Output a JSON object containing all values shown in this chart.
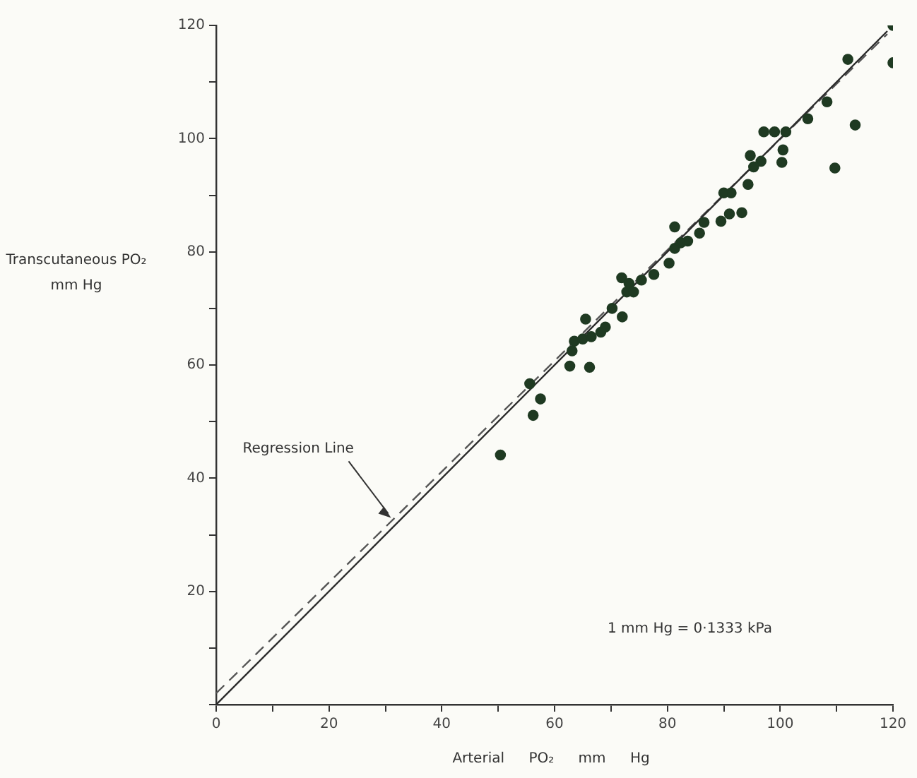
{
  "chart_data": {
    "type": "scatter",
    "xlabel": "Arterial PO₂ mm Hg",
    "ylabel": "Transcutaneous PO₂ mm Hg",
    "xlim": [
      0,
      120
    ],
    "ylim": [
      0,
      120
    ],
    "xticks": [
      0,
      {
        "value": 10,
        "label": null
      },
      20,
      {
        "value": 30,
        "label": null
      },
      40,
      {
        "value": 50,
        "label": null
      },
      60,
      {
        "value": 70,
        "label": null
      },
      80,
      {
        "value": 90,
        "label": null
      },
      100,
      {
        "value": 110,
        "label": null
      },
      120
    ],
    "yticks": [
      {
        "value": 0,
        "label": null
      },
      {
        "value": 10,
        "label": null
      },
      20,
      {
        "value": 30,
        "label": null
      },
      40,
      {
        "value": 50,
        "label": null
      },
      60,
      {
        "value": 70,
        "label": null
      },
      80,
      {
        "value": 90,
        "label": null
      },
      100,
      {
        "value": 110,
        "label": null
      },
      120
    ],
    "grid": false,
    "legend": false,
    "tick_labels": "xy",
    "series": [
      {
        "type": "scatter",
        "color": "#1f3a22",
        "marker": "circle",
        "x": [
          120,
          120,
          112,
          113.3,
          109.7,
          108.3,
          104.9,
          97.1,
          99,
          101,
          100.5,
          100.3,
          94.7,
          96.6,
          95.3,
          94.3,
          90,
          91.3,
          93.2,
          91,
          89.5,
          86.5,
          85.7,
          81.3,
          82.4,
          83.6,
          81.3,
          80.3,
          77.6,
          75.4,
          71.9,
          73.2,
          72.8,
          74,
          70.2,
          72,
          65.5,
          69,
          68.2,
          66.5,
          63.5,
          65,
          63.1,
          62.7,
          66.2,
          55.6,
          57.5,
          56.2,
          50.4
        ],
        "values": [
          120,
          113.4,
          114,
          102.4,
          94.8,
          106.5,
          103.5,
          101.2,
          101.2,
          101.2,
          98,
          95.8,
          97,
          96,
          95,
          91.9,
          90.4,
          90.4,
          86.9,
          86.7,
          85.4,
          85.2,
          83.3,
          84.4,
          81.6,
          81.9,
          80.6,
          78,
          76,
          75,
          75.4,
          74.4,
          72.9,
          72.9,
          70,
          68.5,
          68.1,
          66.7,
          65.8,
          65,
          64.2,
          64.6,
          62.5,
          59.8,
          59.6,
          56.7,
          54,
          51.1,
          44.1
        ]
      },
      {
        "type": "line",
        "color": "#2a2a2a",
        "marker": "none",
        "line_style": "solid",
        "x": [
          0,
          119
        ],
        "values": [
          0,
          119
        ]
      },
      {
        "type": "line",
        "color": "#555555",
        "marker": "none",
        "line_style": "dashed",
        "x": [
          0,
          119
        ],
        "values": [
          2,
          118.5
        ]
      }
    ],
    "annotations": [
      {
        "text": "Regression Line",
        "x": 31,
        "y": 33
      },
      "1 mm Hg = 0·1333 kPa"
    ]
  }
}
